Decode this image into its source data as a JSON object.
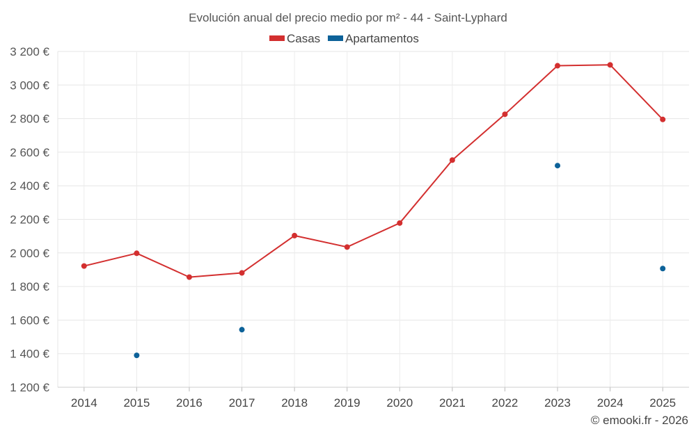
{
  "chart_data": {
    "type": "line",
    "title": "Evolución anual del precio medio por m² - 44 - Saint-Lyphard",
    "xlabel": "",
    "ylabel": "",
    "categories": [
      "2014",
      "2015",
      "2016",
      "2017",
      "2018",
      "2019",
      "2020",
      "2021",
      "2022",
      "2023",
      "2024",
      "2025"
    ],
    "ylim": [
      1200,
      3200
    ],
    "yticks": [
      1200,
      1400,
      1600,
      1800,
      2000,
      2200,
      2400,
      2600,
      2800,
      3000,
      3200
    ],
    "ytick_labels": [
      "1 200 €",
      "1 400 €",
      "1 600 €",
      "1 800 €",
      "2 000 €",
      "2 200 €",
      "2 400 €",
      "2 600 €",
      "2 800 €",
      "3 000 €",
      "3 200 €"
    ],
    "grid": true,
    "legend_position": "top-center",
    "series": [
      {
        "name": "Casas",
        "color": "#d32f2f",
        "line": true,
        "values": [
          1922,
          1998,
          1856,
          1881,
          2103,
          2035,
          2178,
          2553,
          2826,
          3115,
          3120,
          2795
        ]
      },
      {
        "name": "Apartamentos",
        "color": "#0d6299",
        "line": false,
        "values": [
          null,
          1390,
          null,
          1543,
          null,
          null,
          null,
          null,
          null,
          2520,
          null,
          1907
        ]
      }
    ],
    "credit": "© emooki.fr - 2026"
  }
}
